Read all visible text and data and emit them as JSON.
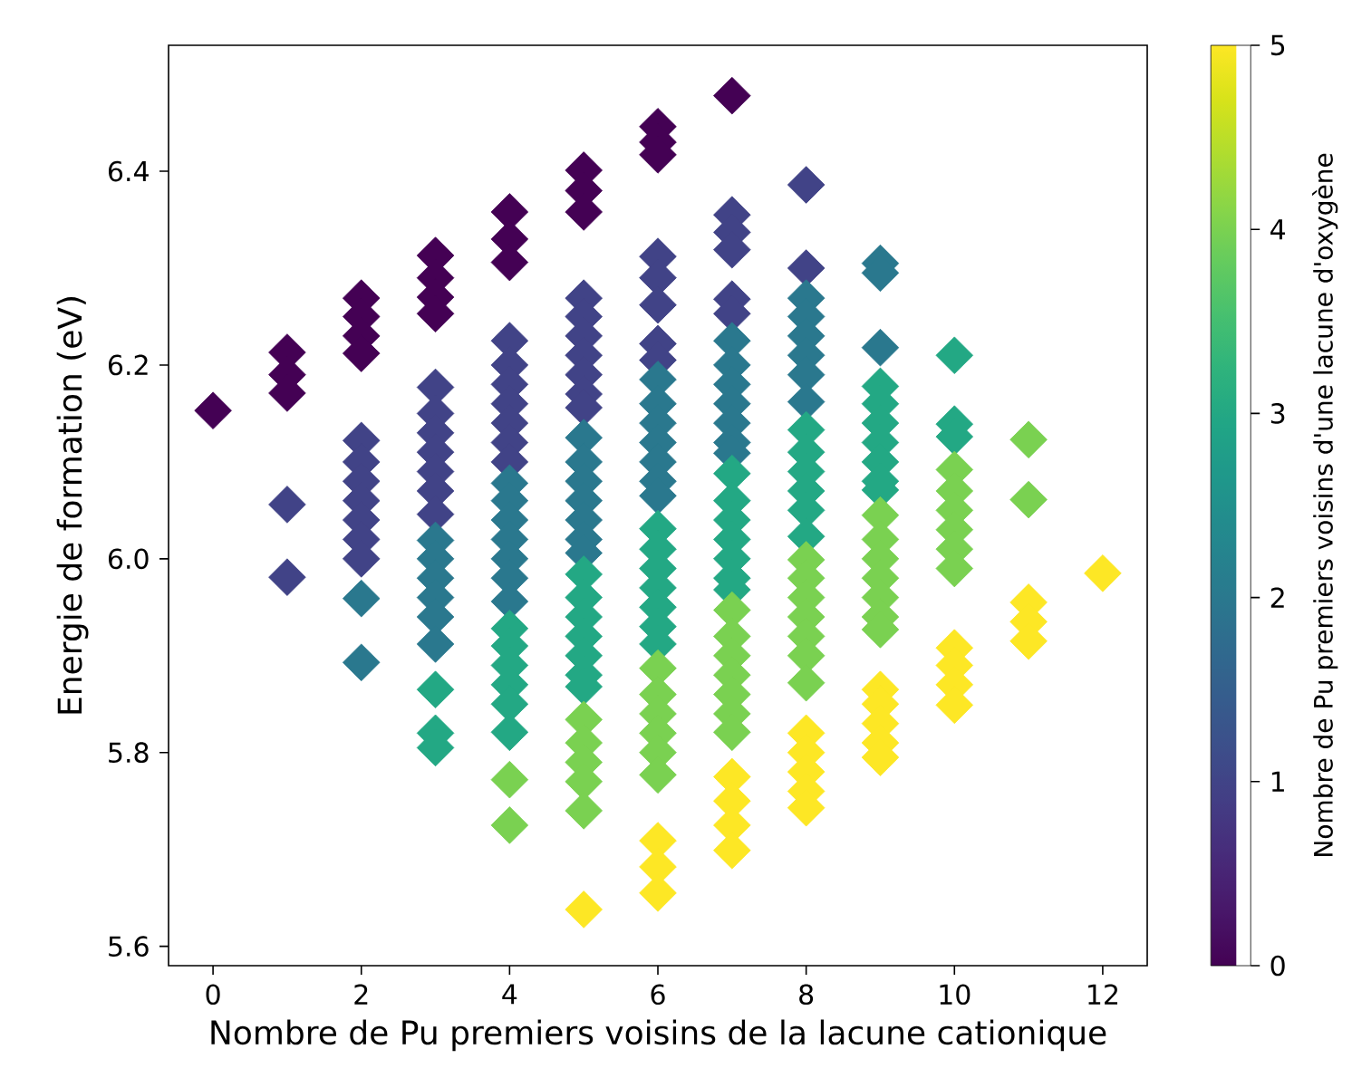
{
  "chart_data": {
    "type": "scatter",
    "xlabel": "Nombre de Pu premiers voisins de la lacune cationique",
    "ylabel": "Energie de formation (eV)",
    "clabel": "Nombre de Pu premiers voisins d'une lacune d'oxygène",
    "marker": "diamond",
    "xlim": [
      -0.6,
      12.6
    ],
    "xticks": [
      0,
      2,
      4,
      6,
      8,
      10,
      12
    ],
    "ylim": [
      5.58,
      6.53
    ],
    "yticks": [
      5.6,
      5.8,
      {
        "value": 6.0,
        "label": "6.0"
      },
      6.2,
      6.4
    ],
    "clim": [
      0,
      5
    ],
    "cticks": [
      0,
      1,
      2,
      3,
      4,
      5
    ],
    "x": [
      0,
      1,
      1,
      1,
      1,
      1,
      2,
      2,
      2,
      2,
      2,
      2,
      2,
      2,
      2,
      2,
      2,
      2,
      2,
      3,
      3,
      3,
      3,
      3,
      3,
      3,
      3,
      3,
      3,
      3,
      3,
      3,
      3,
      3,
      3,
      3,
      3,
      3,
      3,
      4,
      4,
      4,
      4,
      4,
      4,
      4,
      4,
      4,
      4,
      4,
      4,
      4,
      4,
      4,
      4,
      4,
      4,
      4,
      4,
      4,
      4,
      4,
      4,
      4,
      5,
      5,
      5,
      5,
      5,
      5,
      5,
      5,
      5,
      5,
      5,
      5,
      5,
      5,
      5,
      5,
      5,
      5,
      5,
      5,
      5,
      5,
      5,
      5,
      5,
      5,
      5,
      5,
      5,
      5,
      6,
      6,
      6,
      6,
      6,
      6,
      6,
      6,
      6,
      6,
      6,
      6,
      6,
      6,
      6,
      6,
      6,
      6,
      6,
      6,
      6,
      6,
      6,
      6,
      6,
      6,
      6,
      6,
      6,
      6,
      6,
      7,
      7,
      7,
      7,
      7,
      7,
      7,
      7,
      7,
      7,
      7,
      7,
      7,
      7,
      7,
      7,
      7,
      7,
      7,
      7,
      7,
      7,
      7,
      7,
      7,
      7,
      7,
      7,
      7,
      7,
      7,
      8,
      8,
      8,
      8,
      8,
      8,
      8,
      8,
      8,
      8,
      8,
      8,
      8,
      8,
      8,
      8,
      8,
      8,
      8,
      8,
      8,
      8,
      8,
      8,
      8,
      8,
      9,
      9,
      9,
      9,
      9,
      9,
      9,
      9,
      9,
      9,
      9,
      9,
      9,
      9,
      9,
      9,
      9,
      9,
      9,
      9,
      9,
      9,
      10,
      10,
      10,
      10,
      10,
      10,
      10,
      10,
      10,
      10,
      10,
      10,
      10,
      11,
      11,
      11,
      11,
      11,
      12
    ],
    "values": [
      6.153,
      6.213,
      6.19,
      6.171,
      6.056,
      5.981,
      6.269,
      6.25,
      6.23,
      6.212,
      6.122,
      6.1,
      6.08,
      6.06,
      6.04,
      6.02,
      6.0,
      5.959,
      5.893,
      6.313,
      6.29,
      6.27,
      6.253,
      6.177,
      6.15,
      6.13,
      6.11,
      6.09,
      6.07,
      6.046,
      6.019,
      6.0,
      5.98,
      5.96,
      5.94,
      5.912,
      5.865,
      5.82,
      5.805,
      6.358,
      6.33,
      6.306,
      6.225,
      6.2,
      6.18,
      6.16,
      6.14,
      6.12,
      6.1,
      6.078,
      6.06,
      6.04,
      6.02,
      6.0,
      5.98,
      5.956,
      5.928,
      5.91,
      5.89,
      5.87,
      5.85,
      5.821,
      5.772,
      5.725,
      6.401,
      6.38,
      6.358,
      6.269,
      6.25,
      6.23,
      6.21,
      6.19,
      6.17,
      6.156,
      6.125,
      6.1,
      6.08,
      6.06,
      6.04,
      6.02,
      6.006,
      5.984,
      5.96,
      5.94,
      5.92,
      5.9,
      5.88,
      5.868,
      5.834,
      5.81,
      5.79,
      5.77,
      5.74,
      5.638,
      6.446,
      6.43,
      6.417,
      6.312,
      6.29,
      6.262,
      6.222,
      6.205,
      6.185,
      6.16,
      6.14,
      6.12,
      6.1,
      6.08,
      6.065,
      6.031,
      6.01,
      5.99,
      5.97,
      5.95,
      5.93,
      5.912,
      5.887,
      5.86,
      5.84,
      5.82,
      5.8,
      5.777,
      5.709,
      5.682,
      5.655,
      6.478,
      6.355,
      6.337,
      6.319,
      6.268,
      6.253,
      6.225,
      6.2,
      6.18,
      6.16,
      6.14,
      6.12,
      6.109,
      6.088,
      6.06,
      6.04,
      6.02,
      6.0,
      5.98,
      5.968,
      5.947,
      5.92,
      5.9,
      5.88,
      5.86,
      5.84,
      5.821,
      5.775,
      5.75,
      5.725,
      5.699,
      6.386,
      6.3,
      6.269,
      6.25,
      6.23,
      6.21,
      6.19,
      6.162,
      6.133,
      6.11,
      6.09,
      6.07,
      6.05,
      6.023,
      5.999,
      5.98,
      5.96,
      5.94,
      5.92,
      5.9,
      5.872,
      5.82,
      5.8,
      5.78,
      5.76,
      5.743,
      6.305,
      6.295,
      6.218,
      6.178,
      6.16,
      6.14,
      6.12,
      6.1,
      6.08,
      6.071,
      6.045,
      6.02,
      6.0,
      5.98,
      5.96,
      5.94,
      5.927,
      5.865,
      5.85,
      5.83,
      5.81,
      5.795,
      6.21,
      6.139,
      6.126,
      6.092,
      6.07,
      6.05,
      6.03,
      6.01,
      5.99,
      5.908,
      5.89,
      5.87,
      5.849,
      6.123,
      6.061,
      5.955,
      5.935,
      5.915,
      5.985
    ],
    "cvalues": [
      0,
      0,
      0,
      0,
      1,
      1,
      0,
      0,
      0,
      0,
      1,
      1,
      1,
      1,
      1,
      1,
      1,
      2,
      2,
      0,
      0,
      0,
      0,
      1,
      1,
      1,
      1,
      1,
      1,
      1,
      2,
      2,
      2,
      2,
      2,
      2,
      3,
      3,
      3,
      0,
      0,
      0,
      1,
      1,
      1,
      1,
      1,
      1,
      1,
      2,
      2,
      2,
      2,
      2,
      2,
      2,
      3,
      3,
      3,
      3,
      3,
      3,
      4,
      4,
      0,
      0,
      0,
      1,
      1,
      1,
      1,
      1,
      1,
      1,
      2,
      2,
      2,
      2,
      2,
      2,
      2,
      3,
      3,
      3,
      3,
      3,
      3,
      3,
      4,
      4,
      4,
      4,
      4,
      5,
      0,
      0,
      0,
      1,
      1,
      1,
      1,
      1,
      2,
      2,
      2,
      2,
      2,
      2,
      2,
      3,
      3,
      3,
      3,
      3,
      3,
      3,
      4,
      4,
      4,
      4,
      4,
      4,
      5,
      5,
      5,
      0,
      1,
      1,
      1,
      1,
      1,
      2,
      2,
      2,
      2,
      2,
      2,
      2,
      3,
      3,
      3,
      3,
      3,
      3,
      3,
      4,
      4,
      4,
      4,
      4,
      4,
      4,
      5,
      5,
      5,
      5,
      1,
      1,
      2,
      2,
      2,
      2,
      2,
      2,
      3,
      3,
      3,
      3,
      3,
      3,
      4,
      4,
      4,
      4,
      4,
      4,
      4,
      5,
      5,
      5,
      5,
      5,
      2,
      2,
      2,
      3,
      3,
      3,
      3,
      3,
      3,
      3,
      4,
      4,
      4,
      4,
      4,
      4,
      4,
      5,
      5,
      5,
      5,
      5,
      3,
      3,
      3,
      4,
      4,
      4,
      4,
      4,
      4,
      5,
      5,
      5,
      5,
      4,
      4,
      5,
      5,
      5,
      5
    ]
  }
}
